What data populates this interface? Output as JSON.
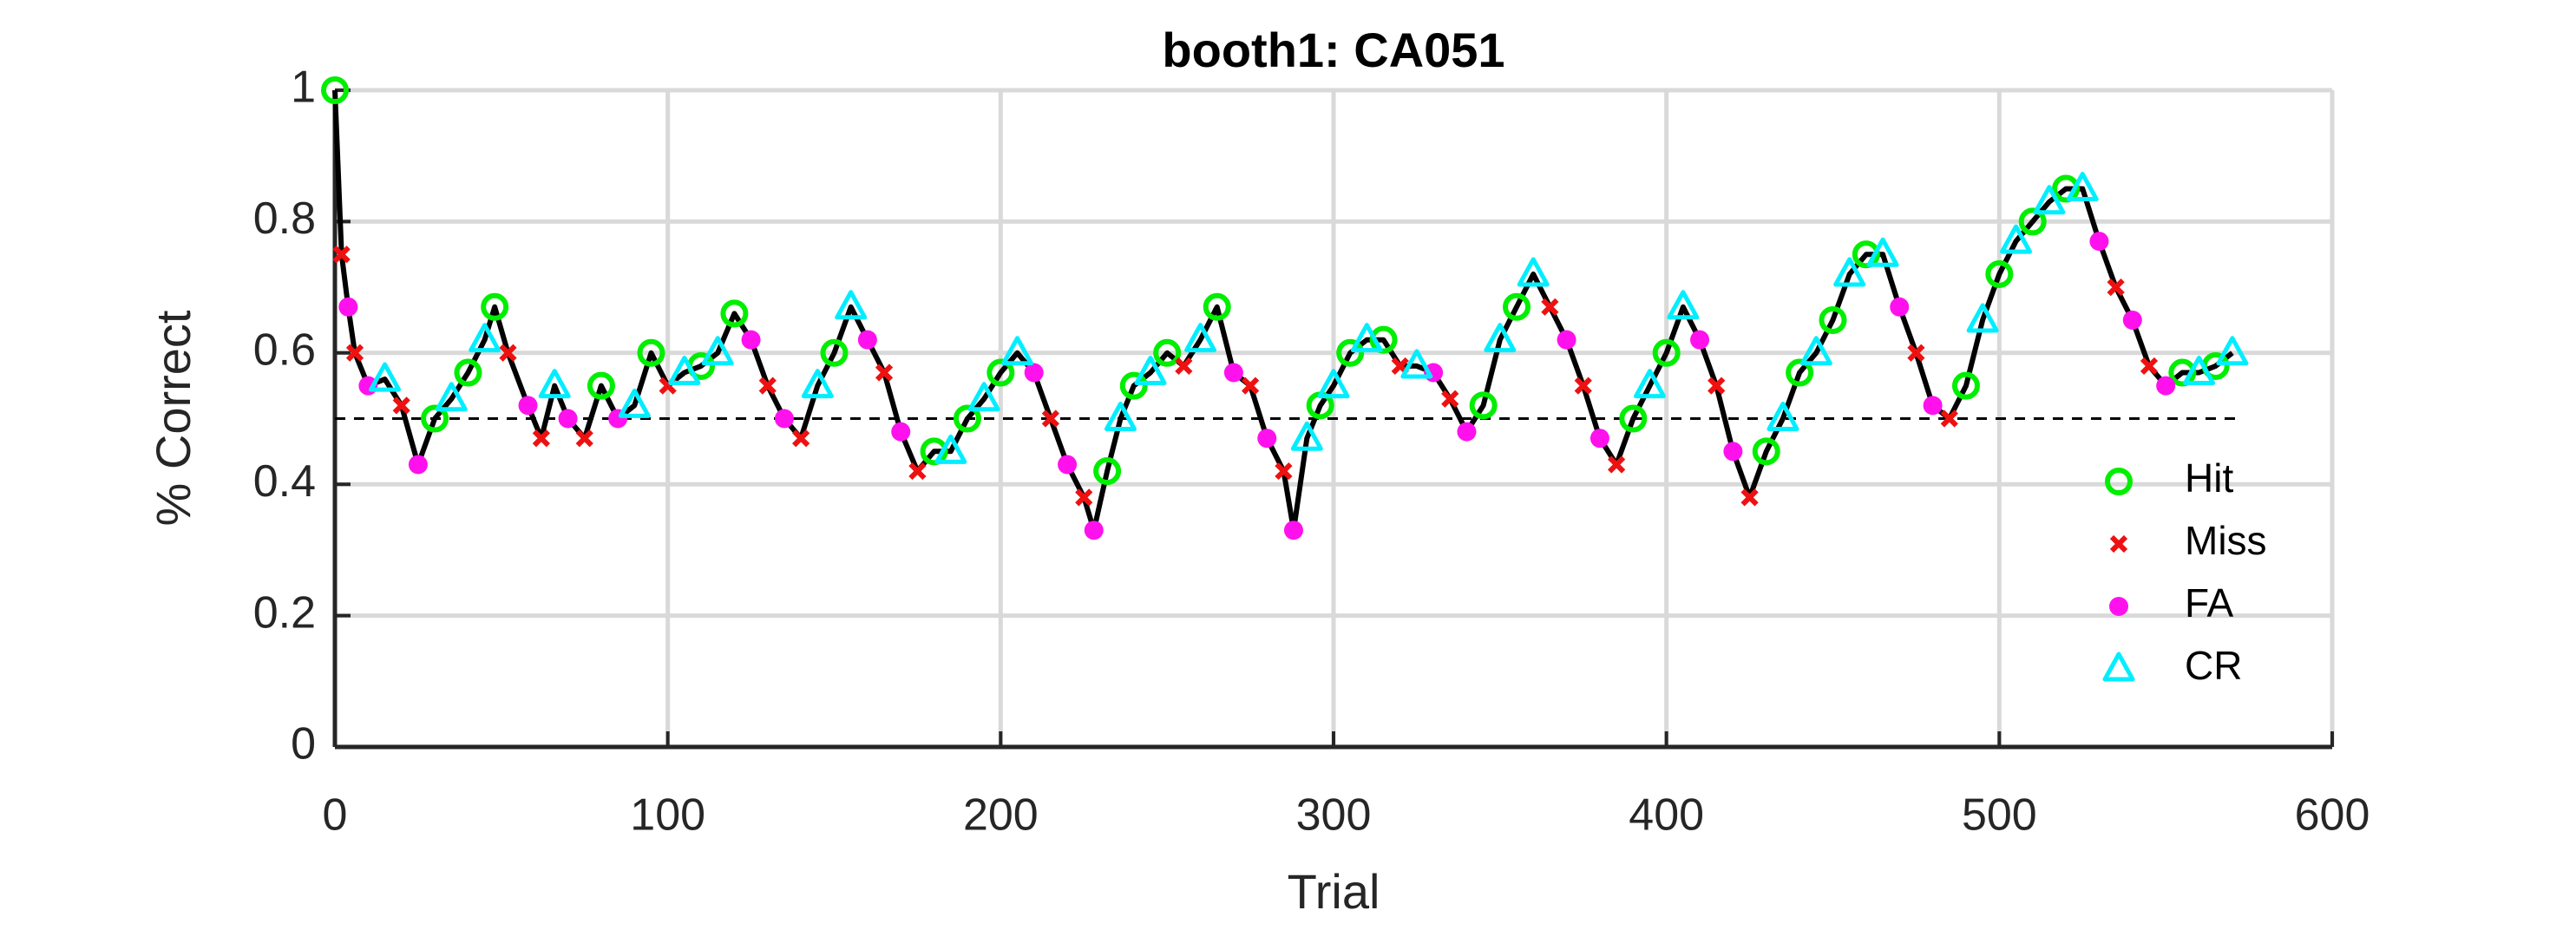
{
  "chart_data": {
    "type": "scatter",
    "title": "booth1: CA051",
    "xlabel": "Trial",
    "ylabel": "% Correct",
    "xlim": [
      0,
      600
    ],
    "ylim": [
      0,
      1
    ],
    "xticks": [
      0,
      100,
      200,
      300,
      400,
      500,
      600
    ],
    "yticks": [
      0,
      0.2,
      0.4,
      0.6,
      0.8,
      1
    ],
    "grid": true,
    "legend": "lower right",
    "line": {
      "color": "#000000",
      "x": [
        0,
        2,
        4,
        6,
        10,
        15,
        20,
        25,
        30,
        35,
        40,
        45,
        48,
        52,
        58,
        62,
        66,
        70,
        75,
        80,
        85,
        90,
        95,
        100,
        105,
        110,
        115,
        120,
        125,
        130,
        135,
        140,
        145,
        150,
        155,
        160,
        165,
        170,
        175,
        180,
        185,
        190,
        195,
        200,
        205,
        210,
        215,
        220,
        225,
        228,
        232,
        236,
        240,
        245,
        250,
        255,
        260,
        265,
        270,
        275,
        280,
        285,
        288,
        292,
        296,
        300,
        305,
        310,
        315,
        320,
        325,
        330,
        335,
        340,
        345,
        350,
        355,
        360,
        365,
        370,
        375,
        380,
        385,
        390,
        395,
        400,
        405,
        410,
        415,
        420,
        425,
        430,
        435,
        440,
        445,
        450,
        455,
        460,
        465,
        470,
        475,
        480,
        485,
        490,
        495,
        500,
        505,
        510,
        515,
        520,
        525,
        530,
        535,
        540,
        545,
        550,
        555,
        560,
        565,
        570
      ],
      "values": [
        1,
        0.75,
        0.67,
        0.6,
        0.55,
        0.56,
        0.52,
        0.43,
        0.5,
        0.53,
        0.57,
        0.62,
        0.67,
        0.6,
        0.52,
        0.47,
        0.55,
        0.5,
        0.47,
        0.55,
        0.5,
        0.52,
        0.6,
        0.55,
        0.57,
        0.58,
        0.6,
        0.66,
        0.62,
        0.55,
        0.5,
        0.47,
        0.55,
        0.6,
        0.67,
        0.62,
        0.57,
        0.48,
        0.42,
        0.45,
        0.45,
        0.5,
        0.53,
        0.57,
        0.6,
        0.57,
        0.5,
        0.43,
        0.38,
        0.33,
        0.42,
        0.5,
        0.55,
        0.57,
        0.6,
        0.58,
        0.62,
        0.67,
        0.57,
        0.55,
        0.47,
        0.42,
        0.33,
        0.47,
        0.52,
        0.55,
        0.6,
        0.62,
        0.62,
        0.58,
        0.58,
        0.57,
        0.53,
        0.48,
        0.52,
        0.62,
        0.67,
        0.72,
        0.67,
        0.62,
        0.55,
        0.47,
        0.43,
        0.5,
        0.55,
        0.6,
        0.67,
        0.62,
        0.55,
        0.45,
        0.38,
        0.45,
        0.5,
        0.57,
        0.6,
        0.65,
        0.72,
        0.75,
        0.75,
        0.67,
        0.6,
        0.52,
        0.5,
        0.55,
        0.65,
        0.72,
        0.77,
        0.8,
        0.83,
        0.85,
        0.85,
        0.77,
        0.7,
        0.65,
        0.58,
        0.55,
        0.57,
        0.57,
        0.58,
        0.6
      ]
    },
    "baseline": {
      "value": 0.5,
      "x": [
        0,
        572
      ]
    },
    "series": [
      {
        "name": "Hit",
        "color": "#00ee00",
        "marker": "circle",
        "x": [
          0,
          30,
          40,
          48,
          80,
          95,
          110,
          120,
          150,
          180,
          190,
          200,
          232,
          240,
          250,
          265,
          296,
          305,
          315,
          345,
          355,
          390,
          400,
          430,
          440,
          450,
          460,
          490,
          500,
          510,
          520,
          555,
          565
        ],
        "values": [
          1,
          0.5,
          0.57,
          0.67,
          0.55,
          0.6,
          0.58,
          0.66,
          0.6,
          0.45,
          0.5,
          0.57,
          0.42,
          0.55,
          0.6,
          0.67,
          0.52,
          0.6,
          0.62,
          0.52,
          0.67,
          0.5,
          0.6,
          0.45,
          0.57,
          0.65,
          0.75,
          0.55,
          0.72,
          0.8,
          0.85,
          0.57,
          0.58
        ]
      },
      {
        "name": "Miss",
        "color": "#ee1111",
        "marker": "cross",
        "x": [
          2,
          6,
          20,
          52,
          62,
          75,
          100,
          130,
          140,
          165,
          175,
          215,
          225,
          255,
          275,
          285,
          320,
          335,
          365,
          375,
          385,
          415,
          425,
          475,
          485,
          535,
          545
        ],
        "values": [
          0.75,
          0.6,
          0.52,
          0.6,
          0.47,
          0.47,
          0.55,
          0.55,
          0.47,
          0.57,
          0.42,
          0.5,
          0.38,
          0.58,
          0.55,
          0.42,
          0.58,
          0.53,
          0.67,
          0.55,
          0.43,
          0.55,
          0.38,
          0.6,
          0.5,
          0.7,
          0.58
        ]
      },
      {
        "name": "FA",
        "color": "#ff11ee",
        "marker": "dot",
        "x": [
          4,
          10,
          25,
          58,
          70,
          85,
          125,
          135,
          160,
          170,
          210,
          220,
          228,
          270,
          280,
          288,
          330,
          340,
          370,
          380,
          410,
          420,
          470,
          480,
          530,
          540,
          550
        ],
        "values": [
          0.67,
          0.55,
          0.43,
          0.52,
          0.5,
          0.5,
          0.62,
          0.5,
          0.62,
          0.48,
          0.57,
          0.43,
          0.33,
          0.57,
          0.47,
          0.33,
          0.57,
          0.48,
          0.62,
          0.47,
          0.62,
          0.45,
          0.67,
          0.52,
          0.77,
          0.65,
          0.55
        ]
      },
      {
        "name": "CR",
        "color": "#00eeff",
        "marker": "triangle",
        "x": [
          15,
          35,
          45,
          66,
          90,
          105,
          115,
          145,
          155,
          185,
          195,
          205,
          236,
          245,
          260,
          292,
          300,
          310,
          325,
          350,
          360,
          395,
          405,
          435,
          445,
          455,
          465,
          495,
          505,
          515,
          525,
          560,
          570
        ],
        "values": [
          0.56,
          0.53,
          0.62,
          0.55,
          0.52,
          0.57,
          0.6,
          0.55,
          0.67,
          0.45,
          0.53,
          0.6,
          0.5,
          0.57,
          0.62,
          0.47,
          0.55,
          0.62,
          0.58,
          0.62,
          0.72,
          0.55,
          0.67,
          0.5,
          0.6,
          0.72,
          0.75,
          0.65,
          0.77,
          0.83,
          0.85,
          0.57,
          0.6
        ]
      }
    ]
  }
}
